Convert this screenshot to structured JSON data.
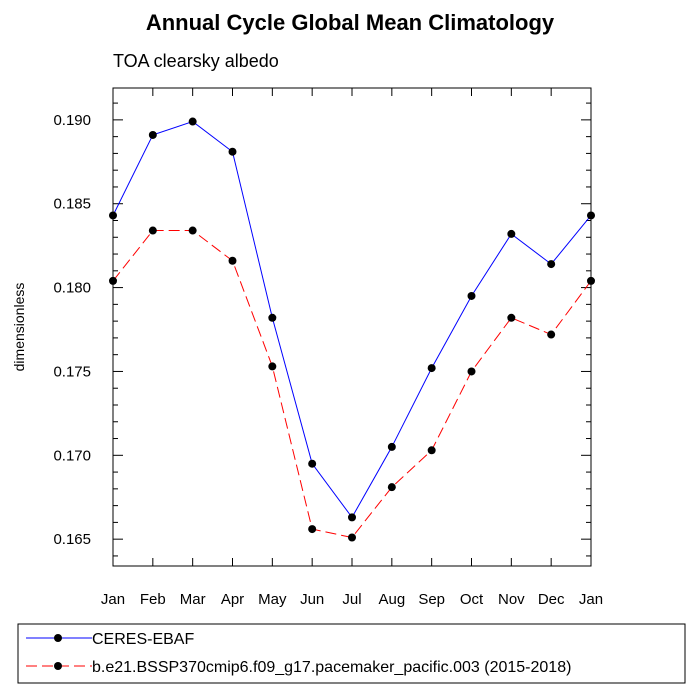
{
  "chart_data": {
    "type": "line",
    "title": "Annual Cycle Global Mean Climatology",
    "subtitle": "TOA clearsky albedo",
    "xlabel": "",
    "ylabel": "dimensionless",
    "categories": [
      "Jan",
      "Feb",
      "Mar",
      "Apr",
      "May",
      "Jun",
      "Jul",
      "Aug",
      "Sep",
      "Oct",
      "Nov",
      "Dec",
      "Jan"
    ],
    "ylim": [
      0.1634,
      0.1919
    ],
    "yticks": [
      "0.165",
      "0.170",
      "0.175",
      "0.180",
      "0.185",
      "0.190"
    ],
    "grid": false,
    "legend_position": "bottom",
    "series": [
      {
        "name": "CERES-EBAF",
        "color": "#0000ff",
        "dash": "solid",
        "marker": "filled-circle",
        "values": [
          0.1843,
          0.1891,
          0.1899,
          0.1881,
          0.1782,
          0.1695,
          0.1663,
          0.1705,
          0.1752,
          0.1795,
          0.1832,
          0.1814,
          0.1843
        ]
      },
      {
        "name": "b.e21.BSSP370cmip6.f09_g17.pacemaker_pacific.003 (2015-2018)",
        "color": "#ff0000",
        "dash": "dashed",
        "marker": "filled-circle",
        "values": [
          0.1804,
          0.1834,
          0.1834,
          0.1816,
          0.1753,
          0.1656,
          0.1651,
          0.1681,
          0.1703,
          0.175,
          0.1782,
          0.1772,
          0.1804
        ]
      }
    ]
  }
}
